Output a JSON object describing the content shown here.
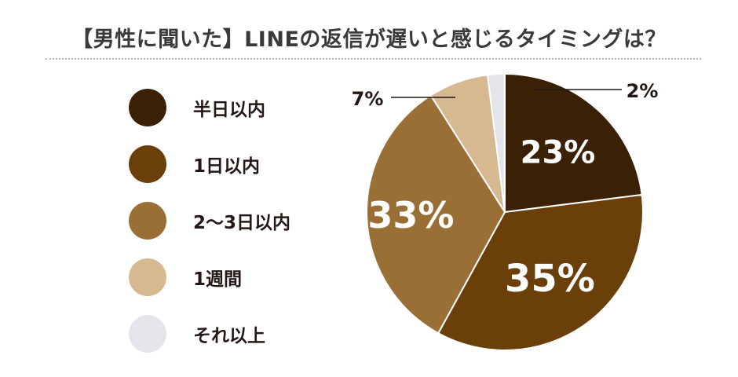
{
  "title": "【男性に聞いた】LINEの返信が遅いと感じるタイミングは？",
  "chart_data": {
    "type": "pie",
    "title": "【男性に聞いた】LINEの返信が遅いと感じるタイミングは？",
    "start": "12 o'clock, clockwise",
    "legend_position": "left",
    "series": [
      {
        "name": "半日以内",
        "value": 23,
        "label": "23%",
        "color": "#3a2106",
        "label_color": "#ffffff"
      },
      {
        "name": "1日以内",
        "value": 35,
        "label": "35%",
        "color": "#6b3f0a",
        "label_color": "#ffffff"
      },
      {
        "name": "2〜3日以内",
        "value": 33,
        "label": "33%",
        "color": "#9a6f36",
        "label_color": "#ffffff"
      },
      {
        "name": "1週間",
        "value": 7,
        "label": "7%",
        "color": "#d6b891",
        "label_color": "#231815"
      },
      {
        "name": "それ以上",
        "value": 2,
        "label": "2%",
        "color": "#e4e5ea",
        "label_color": "#231815"
      }
    ]
  }
}
